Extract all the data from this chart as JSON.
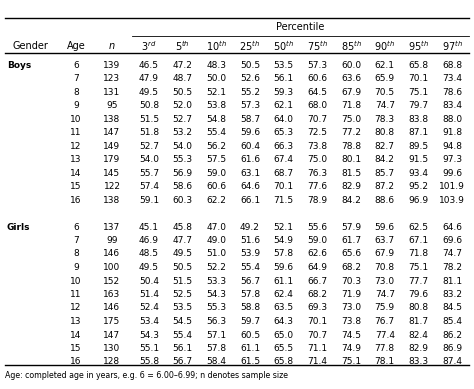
{
  "title": "Percentile",
  "percentile_labels": [
    "3",
    "5",
    "10",
    "25",
    "50",
    "75",
    "85",
    "90",
    "95",
    "97"
  ],
  "superscripts": [
    "rd",
    "th",
    "th",
    "th",
    "th",
    "th",
    "th",
    "th",
    "th",
    "th"
  ],
  "boys_data": [
    [
      "Boys",
      "6",
      "139",
      "46.5",
      "47.2",
      "48.3",
      "50.5",
      "53.5",
      "57.3",
      "60.0",
      "62.1",
      "65.8",
      "68.8"
    ],
    [
      "",
      "7",
      "123",
      "47.9",
      "48.7",
      "50.0",
      "52.6",
      "56.1",
      "60.6",
      "63.6",
      "65.9",
      "70.1",
      "73.4"
    ],
    [
      "",
      "8",
      "131",
      "49.5",
      "50.5",
      "52.1",
      "55.2",
      "59.3",
      "64.5",
      "67.9",
      "70.5",
      "75.1",
      "78.6"
    ],
    [
      "",
      "9",
      "95",
      "50.8",
      "52.0",
      "53.8",
      "57.3",
      "62.1",
      "68.0",
      "71.8",
      "74.7",
      "79.7",
      "83.4"
    ],
    [
      "",
      "10",
      "138",
      "51.5",
      "52.7",
      "54.8",
      "58.7",
      "64.0",
      "70.7",
      "75.0",
      "78.3",
      "83.8",
      "88.0"
    ],
    [
      "",
      "11",
      "147",
      "51.8",
      "53.2",
      "55.4",
      "59.6",
      "65.3",
      "72.5",
      "77.2",
      "80.8",
      "87.1",
      "91.8"
    ],
    [
      "",
      "12",
      "149",
      "52.7",
      "54.0",
      "56.2",
      "60.4",
      "66.3",
      "73.8",
      "78.8",
      "82.7",
      "89.5",
      "94.8"
    ],
    [
      "",
      "13",
      "179",
      "54.0",
      "55.3",
      "57.5",
      "61.6",
      "67.4",
      "75.0",
      "80.1",
      "84.2",
      "91.5",
      "97.3"
    ],
    [
      "",
      "14",
      "145",
      "55.7",
      "56.9",
      "59.0",
      "63.1",
      "68.7",
      "76.3",
      "81.5",
      "85.7",
      "93.4",
      "99.6"
    ],
    [
      "",
      "15",
      "122",
      "57.4",
      "58.6",
      "60.6",
      "64.6",
      "70.1",
      "77.6",
      "82.9",
      "87.2",
      "95.2",
      "101.9"
    ],
    [
      "",
      "16",
      "138",
      "59.1",
      "60.3",
      "62.2",
      "66.1",
      "71.5",
      "78.9",
      "84.2",
      "88.6",
      "96.9",
      "103.9"
    ]
  ],
  "girls_data": [
    [
      "Girls",
      "6",
      "137",
      "45.1",
      "45.8",
      "47.0",
      "49.2",
      "52.1",
      "55.6",
      "57.9",
      "59.6",
      "62.5",
      "64.6"
    ],
    [
      "",
      "7",
      "99",
      "46.9",
      "47.7",
      "49.0",
      "51.6",
      "54.9",
      "59.0",
      "61.7",
      "63.7",
      "67.1",
      "69.6"
    ],
    [
      "",
      "8",
      "146",
      "48.5",
      "49.5",
      "51.0",
      "53.9",
      "57.8",
      "62.6",
      "65.6",
      "67.9",
      "71.8",
      "74.7"
    ],
    [
      "",
      "9",
      "100",
      "49.5",
      "50.5",
      "52.2",
      "55.4",
      "59.6",
      "64.9",
      "68.2",
      "70.8",
      "75.1",
      "78.2"
    ],
    [
      "",
      "10",
      "152",
      "50.4",
      "51.5",
      "53.3",
      "56.7",
      "61.1",
      "66.7",
      "70.3",
      "73.0",
      "77.7",
      "81.1"
    ],
    [
      "",
      "11",
      "163",
      "51.4",
      "52.5",
      "54.3",
      "57.8",
      "62.4",
      "68.2",
      "71.9",
      "74.7",
      "79.6",
      "83.2"
    ],
    [
      "",
      "12",
      "146",
      "52.4",
      "53.5",
      "55.3",
      "58.8",
      "63.5",
      "69.3",
      "73.0",
      "75.9",
      "80.8",
      "84.5"
    ],
    [
      "",
      "13",
      "175",
      "53.4",
      "54.5",
      "56.3",
      "59.7",
      "64.3",
      "70.1",
      "73.8",
      "76.7",
      "81.7",
      "85.4"
    ],
    [
      "",
      "14",
      "147",
      "54.3",
      "55.4",
      "57.1",
      "60.5",
      "65.0",
      "70.7",
      "74.5",
      "77.4",
      "82.4",
      "86.2"
    ],
    [
      "",
      "15",
      "130",
      "55.1",
      "56.1",
      "57.8",
      "61.1",
      "65.5",
      "71.1",
      "74.9",
      "77.8",
      "82.9",
      "86.9"
    ],
    [
      "",
      "16",
      "128",
      "55.8",
      "56.7",
      "58.4",
      "61.5",
      "65.8",
      "71.4",
      "75.1",
      "78.1",
      "83.3",
      "87.4"
    ]
  ],
  "footer": "Age: completed age in years, e.g. 6 = 6.00–6.99; n denotes sample size",
  "bg_color": "#ffffff",
  "text_color": "#000000",
  "font_size": 6.5,
  "header_font_size": 7.0
}
